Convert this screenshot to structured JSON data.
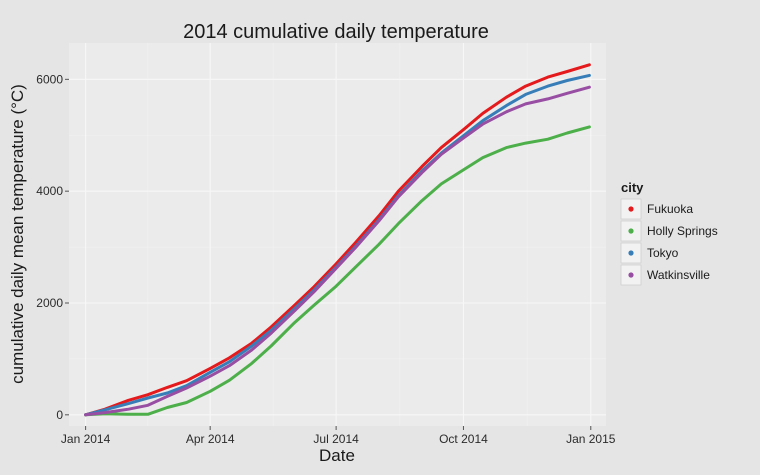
{
  "colors": {
    "page_bg": "#e5e5e5",
    "panel_bg": "#ebebeb",
    "grid_major": "#f7f7f7",
    "grid_minor": "#f2f2f2",
    "Fukuoka": "#e41a1c",
    "Holly Springs": "#4daf4a",
    "Tokyo": "#377eb8",
    "Watkinsville": "#984ea3"
  },
  "chart_data": {
    "type": "line",
    "title": "2014 cumulative daily temperature",
    "xlabel": "Date",
    "ylabel": "cumulative daily mean temperature (°C)",
    "x_scale": "date",
    "xlim": [
      "2013-12-20",
      "2015-01-12"
    ],
    "ylim": [
      -200,
      6650
    ],
    "grid": true,
    "x_ticks": [
      {
        "date": "2014-01-01",
        "label": "Jan 2014"
      },
      {
        "date": "2014-04-01",
        "label": "Apr 2014"
      },
      {
        "date": "2014-07-01",
        "label": "Jul 2014"
      },
      {
        "date": "2014-10-01",
        "label": "Oct 2014"
      },
      {
        "date": "2015-01-01",
        "label": "Jan 2015"
      }
    ],
    "y_ticks": [
      0,
      2000,
      4000,
      6000
    ],
    "legend": {
      "title": "city",
      "position": "right"
    },
    "series": [
      {
        "name": "Fukuoka",
        "x": [
          "2014-01-01",
          "2014-01-15",
          "2014-02-01",
          "2014-02-15",
          "2014-03-01",
          "2014-03-15",
          "2014-04-01",
          "2014-04-15",
          "2014-05-01",
          "2014-05-15",
          "2014-06-01",
          "2014-06-15",
          "2014-07-01",
          "2014-07-15",
          "2014-08-01",
          "2014-08-15",
          "2014-09-01",
          "2014-09-15",
          "2014-10-01",
          "2014-10-15",
          "2014-11-01",
          "2014-11-15",
          "2014-12-01",
          "2014-12-15",
          "2014-12-31"
        ],
        "values": [
          0,
          100,
          260,
          360,
          490,
          610,
          830,
          1020,
          1280,
          1570,
          1960,
          2290,
          2700,
          3080,
          3560,
          4000,
          4440,
          4780,
          5100,
          5390,
          5680,
          5880,
          6040,
          6140,
          6260
        ]
      },
      {
        "name": "Holly Springs",
        "x": [
          "2014-01-01",
          "2014-01-15",
          "2014-02-01",
          "2014-02-15",
          "2014-03-01",
          "2014-03-15",
          "2014-04-01",
          "2014-04-15",
          "2014-05-01",
          "2014-05-15",
          "2014-06-01",
          "2014-06-15",
          "2014-07-01",
          "2014-07-15",
          "2014-08-01",
          "2014-08-15",
          "2014-09-01",
          "2014-09-15",
          "2014-10-01",
          "2014-10-15",
          "2014-11-01",
          "2014-11-15",
          "2014-12-01",
          "2014-12-15",
          "2014-12-31"
        ],
        "values": [
          0,
          20,
          10,
          10,
          130,
          220,
          420,
          620,
          920,
          1230,
          1650,
          1960,
          2300,
          2640,
          3050,
          3420,
          3830,
          4130,
          4380,
          4600,
          4780,
          4860,
          4930,
          5040,
          5150
        ]
      },
      {
        "name": "Tokyo",
        "x": [
          "2014-01-01",
          "2014-01-15",
          "2014-02-01",
          "2014-02-15",
          "2014-03-01",
          "2014-03-15",
          "2014-04-01",
          "2014-04-15",
          "2014-05-01",
          "2014-05-15",
          "2014-06-01",
          "2014-06-15",
          "2014-07-01",
          "2014-07-15",
          "2014-08-01",
          "2014-08-15",
          "2014-09-01",
          "2014-09-15",
          "2014-10-01",
          "2014-10-15",
          "2014-11-01",
          "2014-11-15",
          "2014-12-01",
          "2014-12-15",
          "2014-12-31"
        ],
        "values": [
          0,
          90,
          200,
          300,
          390,
          520,
          760,
          950,
          1230,
          1510,
          1900,
          2230,
          2640,
          3010,
          3490,
          3920,
          4360,
          4680,
          4990,
          5260,
          5530,
          5730,
          5880,
          5980,
          6070
        ]
      },
      {
        "name": "Watkinsville",
        "x": [
          "2014-01-01",
          "2014-01-15",
          "2014-02-01",
          "2014-02-15",
          "2014-03-01",
          "2014-03-15",
          "2014-04-01",
          "2014-04-15",
          "2014-05-01",
          "2014-05-15",
          "2014-06-01",
          "2014-06-15",
          "2014-07-01",
          "2014-07-15",
          "2014-08-01",
          "2014-08-15",
          "2014-09-01",
          "2014-09-15",
          "2014-10-01",
          "2014-10-15",
          "2014-11-01",
          "2014-11-15",
          "2014-12-01",
          "2014-12-15",
          "2014-12-31"
        ],
        "values": [
          0,
          40,
          100,
          170,
          330,
          480,
          690,
          880,
          1160,
          1460,
          1860,
          2200,
          2620,
          2990,
          3470,
          3900,
          4330,
          4660,
          4950,
          5200,
          5420,
          5560,
          5650,
          5750,
          5860
        ]
      }
    ]
  }
}
